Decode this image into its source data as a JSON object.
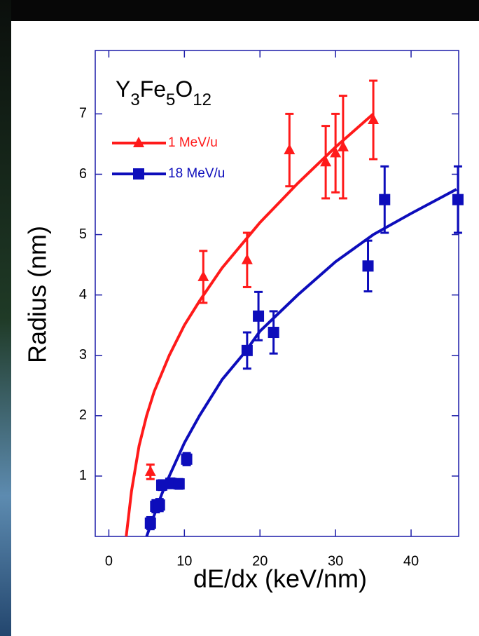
{
  "chart_data": {
    "type": "scatter",
    "xlabel": "dE/dx (keV/nm)",
    "ylabel": "Radius (nm)",
    "annotation_parts": [
      {
        "text": "Y",
        "subscript": false
      },
      {
        "text": "3",
        "subscript": true
      },
      {
        "text": "Fe",
        "subscript": false
      },
      {
        "text": "5",
        "subscript": true
      },
      {
        "text": "O",
        "subscript": false
      },
      {
        "text": "12",
        "subscript": true
      }
    ],
    "xlim": [
      -1.8,
      46.3
    ],
    "ylim": [
      0,
      8.05
    ],
    "xticks": [
      0,
      10,
      20,
      30,
      40
    ],
    "yticks": [
      1,
      2,
      3,
      4,
      5,
      6,
      7
    ],
    "axis_color": "#1c1ca8",
    "series": [
      {
        "name": "1 MeV/u",
        "color": "#ff1a1a",
        "marker": "triangle",
        "x": [
          5.5,
          12.5,
          18.3,
          23.9,
          28.7,
          30,
          31,
          35
        ],
        "values": [
          1.07,
          4.3,
          4.58,
          6.4,
          6.2,
          6.35,
          6.45,
          6.9
        ],
        "errors": [
          0.12,
          0.43,
          0.45,
          0.6,
          0.6,
          0.65,
          0.85,
          0.65
        ],
        "fit": {
          "x": [
            2.3,
            3,
            4,
            5,
            6,
            8,
            10,
            12,
            15,
            18,
            20,
            25,
            30,
            35
          ],
          "y": [
            0,
            0.75,
            1.5,
            2.0,
            2.4,
            3.0,
            3.5,
            3.9,
            4.45,
            4.9,
            5.2,
            5.85,
            6.45,
            7.0
          ]
        }
      },
      {
        "name": "18 MeV/u",
        "color": "#0d0dbb",
        "marker": "square",
        "x": [
          5.5,
          6.2,
          6.7,
          7,
          8.2,
          9.3,
          10.3,
          18.3,
          19.8,
          21.8,
          34.3,
          36.5,
          46.2
        ],
        "values": [
          0.22,
          0.5,
          0.52,
          0.85,
          0.88,
          0.87,
          1.28,
          3.08,
          3.65,
          3.38,
          4.48,
          5.58,
          5.58
        ],
        "errors": [
          0.1,
          0.1,
          0.1,
          0.08,
          0.08,
          0.08,
          0.1,
          0.3,
          0.4,
          0.35,
          0.42,
          0.55,
          0.55
        ],
        "fit": {
          "x": [
            5,
            6,
            7,
            8,
            10,
            12,
            15,
            18,
            20,
            25,
            30,
            35,
            40,
            46
          ],
          "y": [
            0,
            0.35,
            0.7,
            1.0,
            1.55,
            2.0,
            2.6,
            3.05,
            3.4,
            4.0,
            4.55,
            5.0,
            5.35,
            5.75
          ]
        }
      }
    ]
  }
}
